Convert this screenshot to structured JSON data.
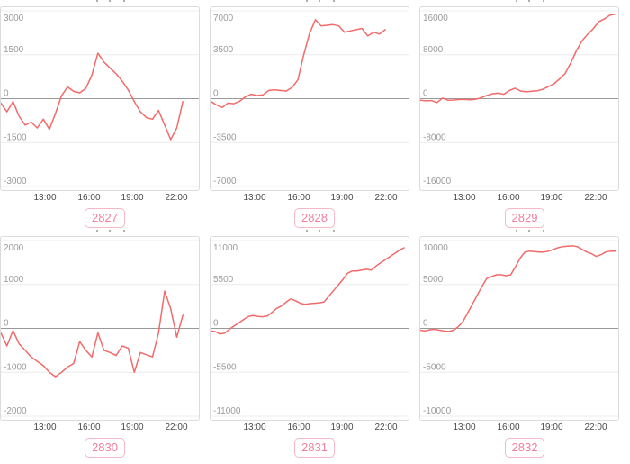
{
  "colors": {
    "line": "#f26a6a",
    "grid_line": "#ececec",
    "zero_line": "#999999",
    "box_border": "#dcdcdc",
    "y_label": "#9a9a9a",
    "x_label": "#4a4a4a",
    "badge_text": "#f0809c",
    "badge_border": "#f6b7c6",
    "title_speck": "#b3b0ac"
  },
  "chart_data": [
    {
      "type": "line",
      "id_label": "2827",
      "legend_position": "none",
      "grid": true,
      "x_tick_labels": [
        "13:00",
        "16:00",
        "19:00",
        "22:00"
      ],
      "x_tick_hours": [
        13,
        16,
        19,
        22
      ],
      "x_domain_hours": [
        9.9,
        23.5
      ],
      "x_data_range_hours": [
        9.9,
        22.4
      ],
      "ylim": [
        -3000,
        3000
      ],
      "y_tick_values": [
        3000,
        1500,
        0,
        -1500,
        -3000
      ],
      "y_tick_labels": [
        "3000",
        "1500",
        "0",
        "-1500",
        "-3000"
      ],
      "values": [
        -150,
        -450,
        -100,
        -600,
        -900,
        -800,
        -1000,
        -700,
        -1050,
        -500,
        100,
        400,
        250,
        200,
        350,
        800,
        1550,
        1250,
        1050,
        850,
        600,
        300,
        -100,
        -450,
        -650,
        -700,
        -400,
        -900,
        -1400,
        -1000,
        -100
      ]
    },
    {
      "type": "line",
      "id_label": "2828",
      "legend_position": "none",
      "grid": true,
      "x_tick_labels": [
        "13:00",
        "16:00",
        "19:00",
        "22:00"
      ],
      "x_tick_hours": [
        13,
        16,
        19,
        22
      ],
      "x_domain_hours": [
        9.9,
        23.5
      ],
      "x_data_range_hours": [
        9.9,
        21.9
      ],
      "ylim": [
        -7000,
        7000
      ],
      "y_tick_values": [
        7000,
        3500,
        0,
        -3500,
        -7000
      ],
      "y_tick_labels": [
        "7000",
        "3500",
        "0",
        "-3500",
        "-7000"
      ],
      "values": [
        -200,
        -500,
        -700,
        -350,
        -400,
        -200,
        150,
        350,
        250,
        300,
        650,
        700,
        650,
        600,
        900,
        1500,
        3500,
        5200,
        6300,
        5800,
        5850,
        5900,
        5800,
        5300,
        5400,
        5500,
        5600,
        5000,
        5300,
        5150,
        5500
      ]
    },
    {
      "type": "line",
      "id_label": "2829",
      "legend_position": "none",
      "grid": true,
      "x_tick_labels": [
        "13:00",
        "16:00",
        "19:00",
        "22:00"
      ],
      "x_tick_hours": [
        13,
        16,
        19,
        22
      ],
      "x_domain_hours": [
        9.9,
        23.5
      ],
      "x_data_range_hours": [
        9.9,
        23.3
      ],
      "ylim": [
        -16000,
        16000
      ],
      "y_tick_values": [
        16000,
        8000,
        0,
        -8000,
        -16000
      ],
      "y_tick_labels": [
        "16000",
        "8000",
        "0",
        "-8000",
        "-16000"
      ],
      "values": [
        -300,
        -400,
        -350,
        -700,
        100,
        -300,
        -250,
        -150,
        -150,
        -200,
        -100,
        200,
        600,
        900,
        1000,
        800,
        1500,
        1900,
        1400,
        1250,
        1350,
        1450,
        1700,
        2200,
        2700,
        3600,
        4600,
        6500,
        8700,
        10500,
        11700,
        12700,
        14000,
        14500,
        15200,
        15400
      ]
    },
    {
      "type": "line",
      "id_label": "2830",
      "legend_position": "none",
      "grid": true,
      "x_tick_labels": [
        "13:00",
        "16:00",
        "19:00",
        "22:00"
      ],
      "x_tick_hours": [
        13,
        16,
        19,
        22
      ],
      "x_domain_hours": [
        9.9,
        23.5
      ],
      "x_data_range_hours": [
        9.9,
        22.4
      ],
      "ylim": [
        -2000,
        2000
      ],
      "y_tick_values": [
        2000,
        1000,
        0,
        -1000,
        -2000
      ],
      "y_tick_labels": [
        "2000",
        "1000",
        "0",
        "-1000",
        "-2000"
      ],
      "values": [
        -100,
        -400,
        -50,
        -350,
        -500,
        -650,
        -750,
        -850,
        -1000,
        -1100,
        -1000,
        -880,
        -800,
        -300,
        -500,
        -650,
        -100,
        -500,
        -550,
        -620,
        -400,
        -450,
        -1000,
        -550,
        -600,
        -650,
        -100,
        850,
        450,
        -200,
        300
      ]
    },
    {
      "type": "line",
      "id_label": "2831",
      "legend_position": "none",
      "grid": true,
      "x_tick_labels": [
        "13:00",
        "16:00",
        "19:00",
        "22:00"
      ],
      "x_tick_hours": [
        13,
        16,
        19,
        22
      ],
      "x_domain_hours": [
        9.9,
        23.5
      ],
      "x_data_range_hours": [
        9.9,
        23.2
      ],
      "ylim": [
        -11000,
        11000
      ],
      "y_tick_values": [
        11000,
        5500,
        0,
        -5500,
        -11000
      ],
      "y_tick_labels": [
        "11000",
        "5500",
        "0",
        "-5500",
        "-11000"
      ],
      "values": [
        -300,
        -400,
        -700,
        -600,
        -100,
        300,
        700,
        1100,
        1500,
        1600,
        1500,
        1450,
        1550,
        2000,
        2500,
        2800,
        3300,
        3700,
        3450,
        3150,
        3000,
        3100,
        3150,
        3200,
        3300,
        4000,
        4700,
        5400,
        6100,
        6900,
        7200,
        7200,
        7300,
        7400,
        7300,
        7800,
        8200,
        8600,
        9000,
        9400,
        9800,
        10100
      ]
    },
    {
      "type": "line",
      "id_label": "2832",
      "legend_position": "none",
      "grid": true,
      "x_tick_labels": [
        "13:00",
        "16:00",
        "19:00",
        "22:00"
      ],
      "x_tick_hours": [
        13,
        16,
        19,
        22
      ],
      "x_domain_hours": [
        9.9,
        23.5
      ],
      "x_data_range_hours": [
        9.9,
        23.3
      ],
      "ylim": [
        -10000,
        10000
      ],
      "y_tick_values": [
        10000,
        5000,
        0,
        -5000,
        -10000
      ],
      "y_tick_labels": [
        "10000",
        "5000",
        "0",
        "-5000",
        "-10000"
      ],
      "values": [
        -200,
        -300,
        -150,
        -100,
        -200,
        -300,
        -350,
        -200,
        200,
        800,
        1800,
        2800,
        3800,
        4800,
        5700,
        5900,
        6100,
        6100,
        6000,
        6100,
        7000,
        8000,
        8700,
        8800,
        8750,
        8700,
        8700,
        8800,
        9000,
        9200,
        9300,
        9350,
        9400,
        9300,
        9000,
        8700,
        8500,
        8200,
        8400,
        8700,
        8800,
        8800
      ]
    }
  ]
}
